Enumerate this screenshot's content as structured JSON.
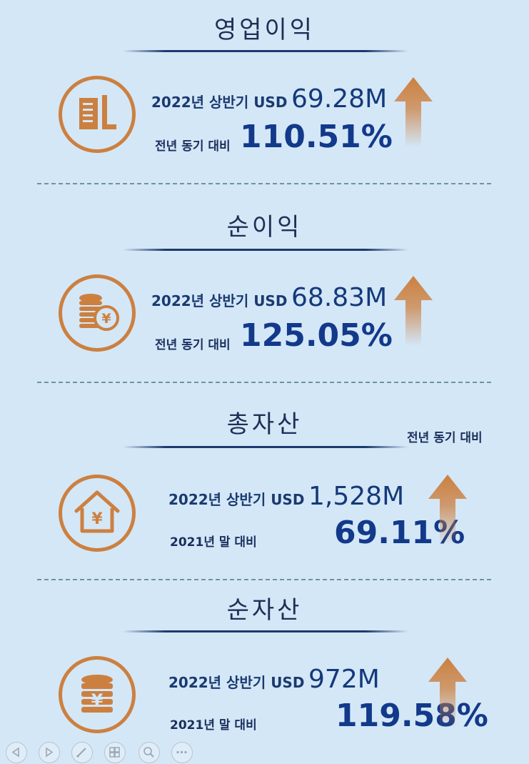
{
  "sections": [
    {
      "title": "영업이익",
      "icon": "building-icon",
      "period_label": "2022년 상반기 USD",
      "amount": "69.28M",
      "comparison_label": "전년 동기 대비",
      "percent": "110.51%"
    },
    {
      "title": "순이익",
      "icon": "coin-stack-yen-icon",
      "period_label": "2022년 상반기 USD",
      "amount": "68.83M",
      "comparison_label": "전년 동기 대비",
      "percent": "125.05%"
    },
    {
      "title": "총자산",
      "icon": "house-yen-icon",
      "period_label": "2022년 상반기 USD",
      "amount": "1,528M",
      "note": "전년 동기 대비",
      "comparison_label": "2021년 말 대비",
      "percent": "69.11%"
    },
    {
      "title": "순자산",
      "icon": "yen-cylinder-icon",
      "period_label": "2022년 상반기 USD",
      "amount": "972M",
      "comparison_label": "2021년 말 대비",
      "percent": "119.58%"
    }
  ],
  "colors": {
    "background": "#d4e7f7",
    "accent_orange": "#cc8040",
    "value_blue": "#14397a",
    "title_dark": "#1d2f55"
  },
  "toolbar": {
    "buttons": [
      "previous-icon",
      "next-icon",
      "pen-icon",
      "slides-grid-icon",
      "zoom-icon",
      "more-icon"
    ]
  }
}
